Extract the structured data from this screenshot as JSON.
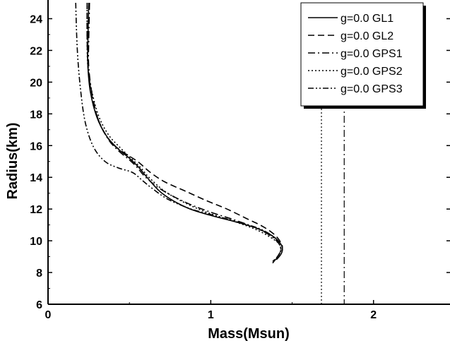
{
  "chart_data": {
    "type": "line",
    "xlabel": "Mass(Msun)",
    "ylabel": "Radius(km)",
    "xlim": [
      0,
      2.47
    ],
    "ylim": [
      6,
      25
    ],
    "xticks": [
      0,
      1,
      2
    ],
    "yticks": [
      6,
      8,
      10,
      12,
      14,
      16,
      18,
      20,
      22,
      24
    ],
    "grid": false,
    "legend_position": "top-right",
    "series": [
      {
        "name": "g=0.0 GL1",
        "style": "solid",
        "x": [
          0.25,
          0.245,
          0.245,
          0.26,
          0.3,
          0.36,
          0.43,
          0.5,
          0.56,
          0.6,
          0.7,
          0.85,
          1.0,
          1.15,
          1.28,
          1.38,
          1.43,
          1.44,
          1.42,
          1.38
        ],
        "y": [
          25,
          22.5,
          21.0,
          19.4,
          17.8,
          16.6,
          15.8,
          15.2,
          14.6,
          14.1,
          13.0,
          12.1,
          11.6,
          11.2,
          10.8,
          10.3,
          9.8,
          9.4,
          9.0,
          8.7
        ]
      },
      {
        "name": "g=0.0 GL2",
        "style": "dashed",
        "x": [
          0.24,
          0.24,
          0.245,
          0.265,
          0.31,
          0.38,
          0.46,
          0.55,
          0.63,
          0.72,
          0.85,
          0.98,
          1.1,
          1.22,
          1.32,
          1.39,
          1.43,
          1.44,
          1.42,
          1.38
        ],
        "y": [
          25,
          22.8,
          21.2,
          19.4,
          17.6,
          16.3,
          15.6,
          15.0,
          14.3,
          13.7,
          13.1,
          12.5,
          12.0,
          11.4,
          10.9,
          10.4,
          9.9,
          9.5,
          9.0,
          8.6
        ]
      },
      {
        "name": "g=0.0 GPS1",
        "style": "dash-dot",
        "x": [
          0.255,
          0.25,
          0.25,
          0.27,
          0.31,
          0.37,
          0.43,
          0.5,
          0.55,
          0.6,
          0.7,
          0.85,
          1.0,
          1.15,
          1.28,
          1.37,
          1.42,
          1.43,
          1.41,
          1.38
        ],
        "y": [
          25,
          22.6,
          21.0,
          19.3,
          17.6,
          16.4,
          15.7,
          15.1,
          14.6,
          14.0,
          13.2,
          12.4,
          11.8,
          11.3,
          10.8,
          10.3,
          9.8,
          9.4,
          9.0,
          8.6
        ]
      },
      {
        "name": "g=0.0 GPS2",
        "style": "dotted",
        "x": [
          0.24,
          0.24,
          0.245,
          0.265,
          0.31,
          0.37,
          0.44,
          0.51,
          0.57,
          0.62,
          0.72,
          0.86,
          1.0,
          1.15,
          1.28,
          1.37,
          1.42,
          1.43,
          1.41,
          1.38
        ],
        "y": [
          25,
          22.6,
          21.0,
          19.6,
          17.9,
          16.7,
          15.9,
          15.2,
          14.6,
          14.0,
          13.1,
          12.3,
          11.7,
          11.2,
          10.7,
          10.2,
          9.8,
          9.4,
          9.0,
          8.7
        ]
      },
      {
        "name": "g=0.0 GPS3",
        "style": "dash-dot-dot",
        "x": [
          0.17,
          0.18,
          0.2,
          0.23,
          0.28,
          0.35,
          0.43,
          0.52,
          0.58,
          0.64,
          0.74,
          0.88,
          1.02,
          1.16,
          1.29,
          1.38,
          1.42,
          1.43,
          1.41,
          1.38
        ],
        "y": [
          25,
          22.0,
          19.5,
          17.4,
          15.9,
          15.0,
          14.6,
          14.3,
          13.8,
          13.3,
          12.6,
          12.0,
          11.6,
          11.2,
          10.8,
          10.3,
          9.8,
          9.4,
          9.0,
          8.6
        ]
      }
    ],
    "vertical_lines": [
      {
        "x": 1.68,
        "style": "dotted"
      },
      {
        "x": 1.82,
        "style": "dash-dot"
      }
    ]
  }
}
